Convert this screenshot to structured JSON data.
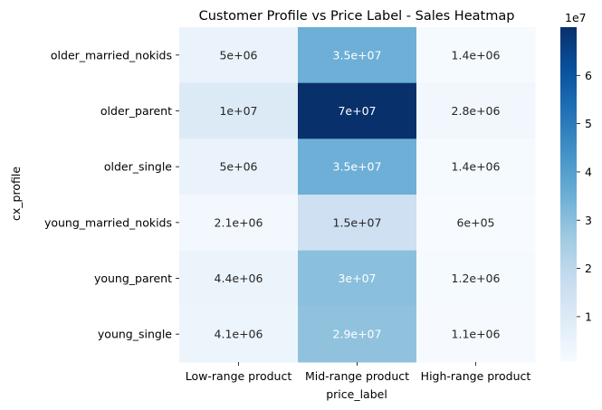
{
  "chart_data": {
    "type": "heatmap",
    "title": "Customer Profile vs Price Label - Sales Heatmap",
    "xlabel": "price_label",
    "ylabel": "cx_profile",
    "x_categories": [
      "Low-range product",
      "Mid-range product",
      "High-range product"
    ],
    "y_categories": [
      "older_married_nokids",
      "older_parent",
      "older_single",
      "young_married_nokids",
      "young_parent",
      "young_single"
    ],
    "values": [
      [
        5000000,
        35000000,
        1400000
      ],
      [
        10000000,
        70000000,
        2800000
      ],
      [
        5000000,
        35000000,
        1400000
      ],
      [
        2100000,
        15000000,
        600000
      ],
      [
        4400000,
        30000000,
        1200000
      ],
      [
        4100000,
        29000000,
        1100000
      ]
    ],
    "annotations": [
      [
        "5e+06",
        "3.5e+07",
        "1.4e+06"
      ],
      [
        "1e+07",
        "7e+07",
        "2.8e+06"
      ],
      [
        "5e+06",
        "3.5e+07",
        "1.4e+06"
      ],
      [
        "2.1e+06",
        "1.5e+07",
        "6e+05"
      ],
      [
        "4.4e+06",
        "3e+07",
        "1.2e+06"
      ],
      [
        "4.1e+06",
        "2.9e+07",
        "1.1e+06"
      ]
    ],
    "colormap": "Blues",
    "colorbar": {
      "ticks": [
        1,
        2,
        3,
        4,
        5,
        6
      ],
      "tick_labels": [
        "1",
        "2",
        "3",
        "4",
        "5",
        "6"
      ],
      "multiplier_label": "1e7",
      "range": [
        600000,
        70000000
      ]
    }
  }
}
